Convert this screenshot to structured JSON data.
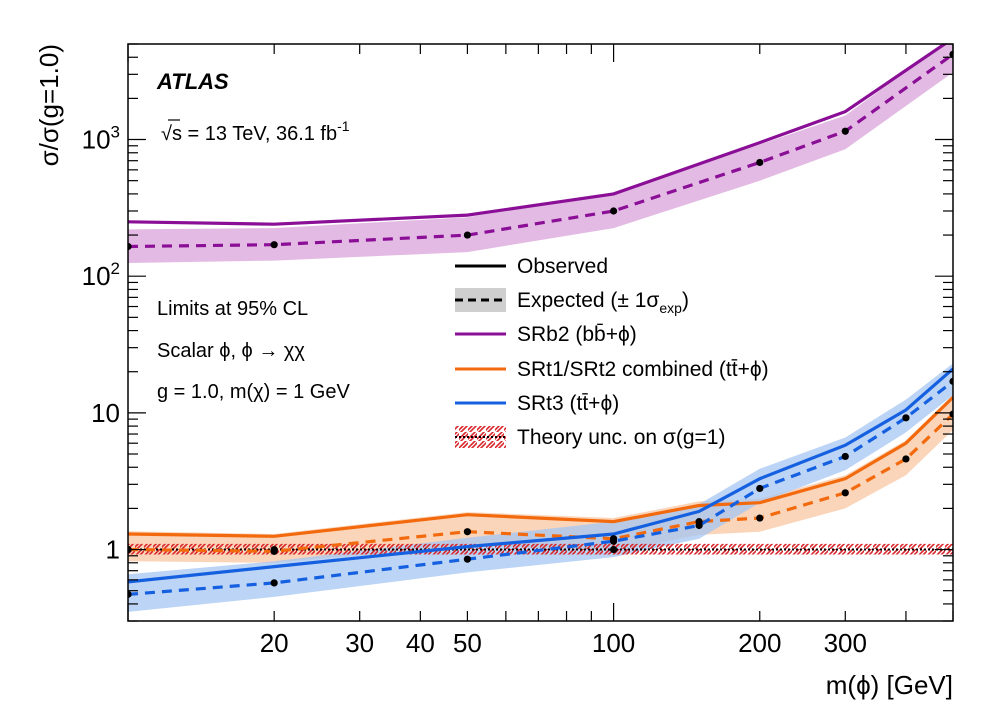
{
  "chart_data": {
    "type": "line",
    "experiment": "ATLAS",
    "energy_lumi": "√s = 13 TeV, 36.1 fb",
    "energy_lumi_sup": "-1",
    "annotations": [
      "Limits at 95% CL",
      "Scalar ϕ, ϕ → χχ",
      "g = 1.0,  m(χ) = 1 GeV"
    ],
    "xlabel": "m(ϕ) [GeV]",
    "ylabel": "σ/σ(g=1.0)",
    "x_scale": "log",
    "y_scale": "log",
    "xlim": [
      10,
      500
    ],
    "ylim": [
      0.3,
      5000
    ],
    "x_tick_labels": [
      {
        "value": 20,
        "label": "20"
      },
      {
        "value": 30,
        "label": "30"
      },
      {
        "value": 40,
        "label": "40"
      },
      {
        "value": 50,
        "label": "50"
      },
      {
        "value": 100,
        "label": "100"
      },
      {
        "value": 200,
        "label": "200"
      },
      {
        "value": 300,
        "label": "300"
      }
    ],
    "y_tick_labels": [
      {
        "value": 1,
        "label": "1"
      },
      {
        "value": 10,
        "label": "10"
      },
      {
        "value": 100,
        "label": "10",
        "sup": "2"
      },
      {
        "value": 1000,
        "label": "10",
        "sup": "3"
      }
    ],
    "legend": {
      "placement": "center-right",
      "entries": [
        {
          "key": "observed",
          "label": "Observed"
        },
        {
          "key": "expected",
          "label": "Expected (± 1σ",
          "sub": "exp",
          "label_end": ")"
        },
        {
          "key": "srb2",
          "label": "SRb2 (bb̄+ϕ)"
        },
        {
          "key": "srt12",
          "label": "SRt1/SRt2 combined (tt̄+ϕ)"
        },
        {
          "key": "srt3",
          "label": "SRt3 (tt̄+ϕ)"
        },
        {
          "key": "theory",
          "label": "Theory unc. on σ(g=1)"
        }
      ]
    },
    "series": [
      {
        "key": "srb2",
        "color": "#8a0f96",
        "band_color": "#d9a3da",
        "x": [
          10,
          20,
          50,
          100,
          200,
          300,
          500
        ],
        "observed": [
          250,
          240,
          280,
          400,
          950,
          1600,
          5500
        ],
        "expected": [
          165,
          170,
          200,
          300,
          680,
          1150,
          4200
        ],
        "band_lo": [
          125,
          130,
          150,
          225,
          500,
          850,
          3100
        ],
        "band_hi": [
          220,
          225,
          270,
          410,
          920,
          1500,
          5600
        ]
      },
      {
        "key": "srt12",
        "color": "#f26a0d",
        "band_color": "#f9c7a3",
        "x": [
          10,
          20,
          50,
          100,
          150,
          200,
          300,
          400,
          500
        ],
        "observed": [
          1.3,
          1.25,
          1.8,
          1.6,
          2.1,
          2.2,
          3.3,
          6.0,
          13
        ],
        "expected": [
          1.0,
          0.97,
          1.35,
          1.2,
          1.6,
          1.7,
          2.6,
          4.6,
          9.8
        ],
        "band_lo": [
          0.82,
          0.8,
          1.08,
          0.97,
          1.28,
          1.35,
          2.0,
          3.5,
          7.5
        ],
        "band_hi": [
          1.36,
          1.3,
          1.88,
          1.7,
          2.25,
          2.35,
          3.5,
          6.3,
          13.5
        ]
      },
      {
        "key": "srt3",
        "color": "#1560e0",
        "band_color": "#a6c6f2",
        "x": [
          10,
          20,
          50,
          100,
          150,
          200,
          300,
          400,
          500
        ],
        "observed": [
          0.58,
          0.75,
          1.05,
          1.3,
          1.9,
          3.3,
          5.8,
          10.5,
          21
        ],
        "expected": [
          0.47,
          0.57,
          0.85,
          1.15,
          1.5,
          2.8,
          4.8,
          9.2,
          17
        ],
        "band_lo": [
          0.35,
          0.45,
          0.68,
          0.88,
          1.2,
          2.2,
          3.8,
          7.2,
          13.5
        ],
        "band_hi": [
          0.66,
          0.82,
          1.22,
          1.6,
          2.15,
          3.9,
          6.6,
          12.5,
          23
        ]
      }
    ],
    "expected_markers_on_series": true,
    "theory_band": {
      "color": "#d9262b",
      "y": 1.0,
      "y_lo": 0.92,
      "y_hi": 1.1
    }
  }
}
